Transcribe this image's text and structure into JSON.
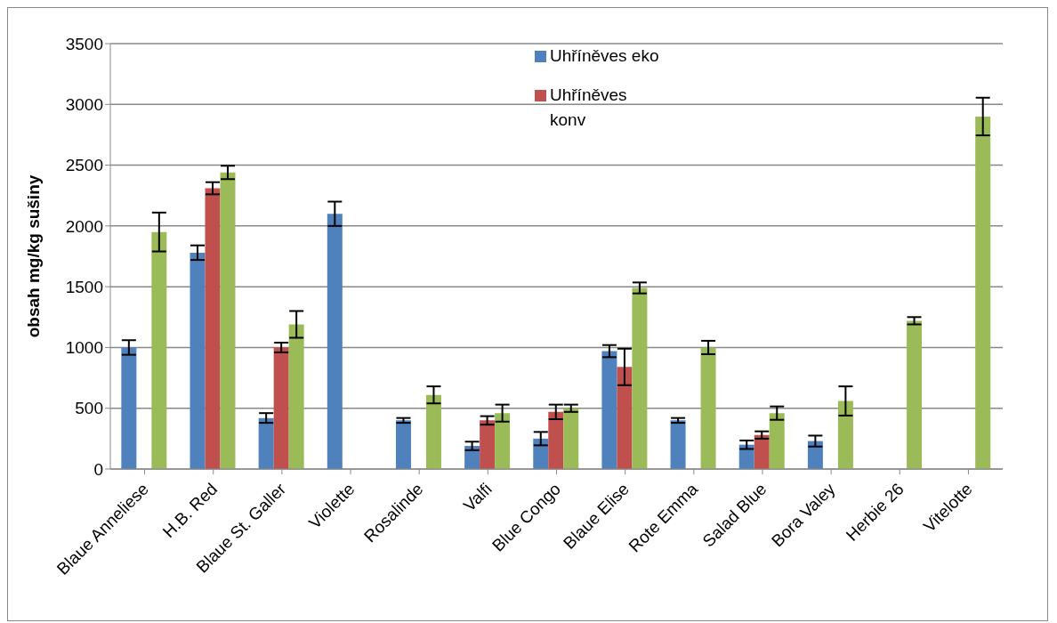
{
  "chart_data": {
    "type": "bar",
    "ylabel": "obsah mg/kg sušiny",
    "categories": [
      "Blaue Anneliese",
      "H.B. Red",
      "Blaue St. Galler",
      "Violette",
      "Rosalinde",
      "Valfi",
      "Blue Congo",
      "Blaue Elise",
      "Rote Emma",
      "Salad Blue",
      "Bora Valey",
      "Herbie 26",
      "Vitelotte"
    ],
    "series": [
      {
        "name": "Uhříněves eko",
        "color": "#4f81bd",
        "values": [
          1000,
          1780,
          420,
          2100,
          400,
          190,
          250,
          970,
          400,
          200,
          230,
          null,
          null
        ],
        "errors": [
          60,
          60,
          40,
          100,
          20,
          35,
          55,
          50,
          20,
          35,
          45,
          null,
          null
        ]
      },
      {
        "name": "Uhříněves konv",
        "color": "#c0504d",
        "values": [
          null,
          2310,
          1000,
          null,
          null,
          400,
          470,
          840,
          null,
          280,
          null,
          null,
          null
        ],
        "errors": [
          null,
          50,
          40,
          null,
          null,
          35,
          60,
          150,
          null,
          30,
          null,
          null,
          null
        ]
      },
      {
        "color": "#9bbb59",
        "values": [
          1950,
          2440,
          1190,
          null,
          610,
          460,
          500,
          1490,
          1000,
          460,
          560,
          1220,
          2900
        ],
        "errors": [
          160,
          55,
          110,
          null,
          70,
          70,
          30,
          45,
          55,
          55,
          120,
          30,
          155
        ]
      }
    ],
    "ylim": [
      0,
      3500
    ],
    "yticks": [
      0,
      500,
      1000,
      1500,
      2000,
      2500,
      3000,
      3500
    ],
    "grid": "y",
    "legend": "top right"
  }
}
